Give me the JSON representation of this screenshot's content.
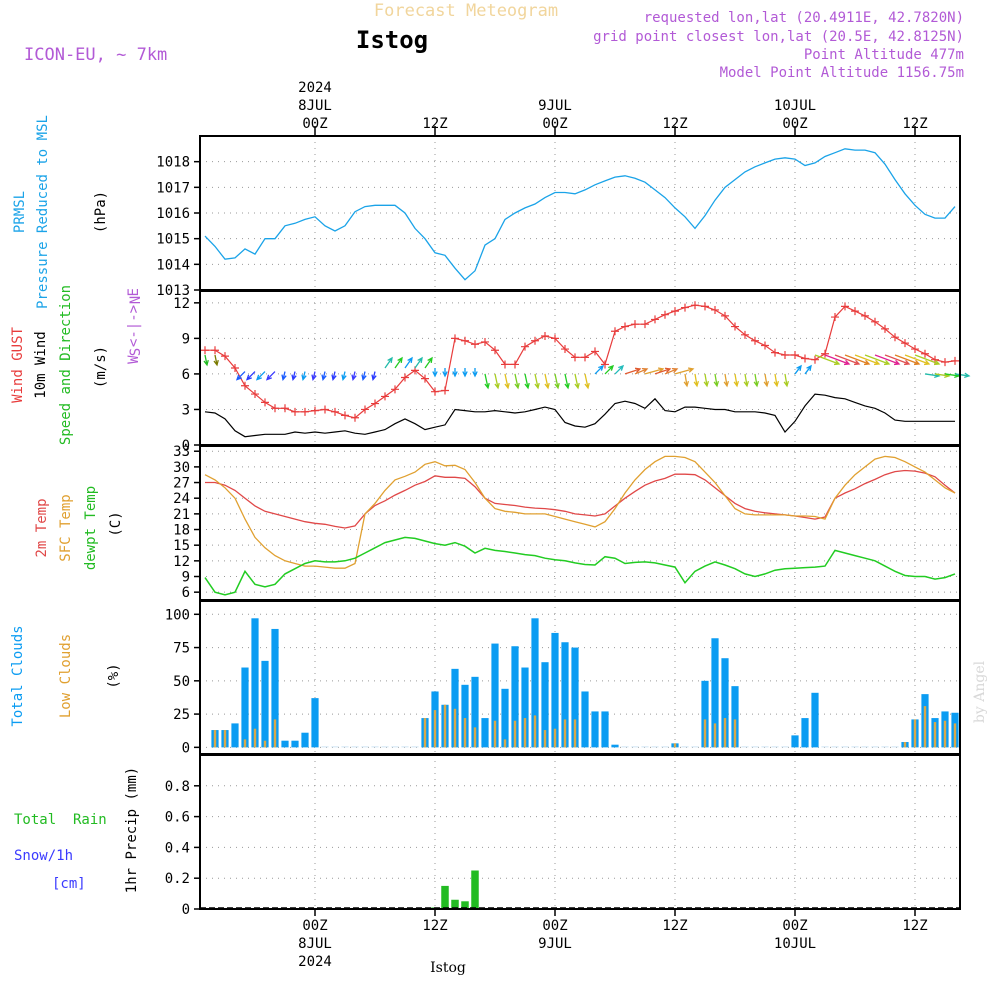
{
  "header": {
    "product_title": "Forecast Meteogram",
    "station": "Istog",
    "model": "ICON-EU, ~ 7km",
    "info_lines": [
      "requested lon,lat (20.4911E, 42.7820N)",
      "grid point closest lon,lat (20.5E, 42.8125N)",
      "Point Altitude 477m",
      "Model Point Altitude 1156.75m"
    ],
    "watermark": "by Angel",
    "footer_station": "Istog"
  },
  "colors": {
    "pressure": "#1aa3e8",
    "gust": "#e83c3c",
    "wind10m": "#000000",
    "temp2m": "#e04848",
    "sfc_temp": "#e0a030",
    "dewpt": "#22cc22",
    "total_clouds": "#0b9cf2",
    "low_clouds": "#d7a94b",
    "rain": "#22bb22",
    "snow": "#3a3aff",
    "purple": "#b25ad6"
  },
  "time_axis": {
    "top_labels": [
      {
        "lines": [
          "2024",
          "8JUL",
          "00Z"
        ],
        "h": 24
      },
      {
        "lines": [
          "12Z"
        ],
        "h": 36
      },
      {
        "lines": [
          "9JUL",
          "00Z"
        ],
        "h": 48
      },
      {
        "lines": [
          "12Z"
        ],
        "h": 60
      },
      {
        "lines": [
          "10JUL",
          "00Z"
        ],
        "h": 72
      },
      {
        "lines": [
          "12Z"
        ],
        "h": 84
      }
    ],
    "bottom_labels": [
      {
        "lines": [
          "00Z",
          "8JUL",
          "2024"
        ],
        "h": 24
      },
      {
        "lines": [
          "12Z"
        ],
        "h": 36
      },
      {
        "lines": [
          "00Z",
          "9JUL"
        ],
        "h": 48
      },
      {
        "lines": [
          "12Z"
        ],
        "h": 60
      },
      {
        "lines": [
          "00Z",
          "10JUL"
        ],
        "h": 72
      },
      {
        "lines": [
          "12Z"
        ],
        "h": 84
      }
    ]
  },
  "panels": {
    "pressure": {
      "labels": [
        "PRMSL",
        "Pressure Reduced to MSL"
      ],
      "unit": "(hPa)",
      "ticks": [
        1013,
        1014,
        1015,
        1016,
        1017,
        1018
      ],
      "ylim": [
        1013,
        1019
      ]
    },
    "wind": {
      "labels": [
        "Wind GUST",
        "10m Wind",
        "Speed and Direction"
      ],
      "unit": "(m/s)",
      "compass": [
        "N",
        "W <-|-> E",
        "S"
      ],
      "ticks": [
        0,
        3,
        6,
        9,
        12
      ],
      "ylim": [
        0,
        13
      ]
    },
    "temp": {
      "labels": [
        "2m Temp",
        "SFC Temp",
        "dewpt Temp"
      ],
      "unit": "(C)",
      "ticks": [
        6,
        9,
        12,
        15,
        18,
        21,
        24,
        27,
        30,
        33
      ],
      "ylim": [
        4.5,
        34
      ]
    },
    "clouds": {
      "labels": [
        "Total Clouds",
        "Low Clouds"
      ],
      "unit": "(%)",
      "ticks": [
        0,
        25,
        50,
        75,
        100
      ],
      "ylim": [
        -5,
        110
      ]
    },
    "precip": {
      "labels": [
        "Total  Rain",
        "Snow/1h",
        "[cm]"
      ],
      "ylabel": "1hr Precip (mm)",
      "ticks": [
        "0",
        "0.2",
        "0.4",
        "0.6",
        "0.8"
      ],
      "ylim": [
        0,
        1.0
      ]
    }
  },
  "chart_data": [
    {
      "type": "line",
      "title": "PRMSL",
      "ylabel": "(hPa)",
      "x_hours": [
        13,
        14,
        15,
        16,
        17,
        18,
        19,
        20,
        21,
        22,
        23,
        24,
        25,
        26,
        27,
        28,
        29,
        30,
        31,
        32,
        33,
        34,
        35,
        36,
        37,
        38,
        39,
        40,
        41,
        42,
        43,
        44,
        45,
        46,
        47,
        48,
        49,
        50,
        51,
        52,
        53,
        54,
        55,
        56,
        57,
        58,
        59,
        60,
        61,
        62,
        63,
        64,
        65,
        66,
        67,
        68,
        69,
        70,
        71,
        72,
        73,
        74,
        75,
        76,
        77,
        78,
        79,
        80,
        81,
        82,
        83,
        84,
        85,
        86,
        87,
        88
      ],
      "series": [
        {
          "name": "PRMSL",
          "values": [
            1015.1,
            1014.7,
            1014.2,
            1014.25,
            1014.6,
            1014.4,
            1015.0,
            1015.0,
            1015.5,
            1015.6,
            1015.75,
            1015.85,
            1015.5,
            1015.3,
            1015.5,
            1016.05,
            1016.25,
            1016.3,
            1016.3,
            1016.3,
            1016.0,
            1015.4,
            1015.0,
            1014.45,
            1014.35,
            1013.85,
            1013.4,
            1013.75,
            1014.75,
            1015.0,
            1015.75,
            1016.0,
            1016.2,
            1016.35,
            1016.6,
            1016.8,
            1016.8,
            1016.75,
            1016.9,
            1017.1,
            1017.25,
            1017.4,
            1017.45,
            1017.35,
            1017.2,
            1016.9,
            1016.6,
            1016.2,
            1015.85,
            1015.4,
            1015.9,
            1016.5,
            1017.0,
            1017.3,
            1017.6,
            1017.8,
            1017.95,
            1018.1,
            1018.15,
            1018.1,
            1017.85,
            1017.95,
            1018.2,
            1018.35,
            1018.5,
            1018.45,
            1018.45,
            1018.35,
            1017.9,
            1017.3,
            1016.75,
            1016.3,
            1015.95,
            1015.8,
            1015.8,
            1016.25
          ]
        }
      ]
    },
    {
      "type": "line",
      "title": "Wind GUST / 10m Wind",
      "ylabel": "(m/s)",
      "x_hours": [
        13,
        14,
        15,
        16,
        17,
        18,
        19,
        20,
        21,
        22,
        23,
        24,
        25,
        26,
        27,
        28,
        29,
        30,
        31,
        32,
        33,
        34,
        35,
        36,
        37,
        38,
        39,
        40,
        41,
        42,
        43,
        44,
        45,
        46,
        47,
        48,
        49,
        50,
        51,
        52,
        53,
        54,
        55,
        56,
        57,
        58,
        59,
        60,
        61,
        62,
        63,
        64,
        65,
        66,
        67,
        68,
        69,
        70,
        71,
        72,
        73,
        74,
        75,
        76,
        77,
        78,
        79,
        80,
        81,
        82,
        83,
        84,
        85,
        86,
        87,
        88
      ],
      "series": [
        {
          "name": "Wind GUST",
          "values": [
            8.0,
            8.0,
            7.5,
            6.5,
            5.0,
            4.3,
            3.6,
            3.1,
            3.1,
            2.8,
            2.8,
            2.9,
            3.0,
            2.8,
            2.5,
            2.3,
            3.0,
            3.5,
            4.1,
            4.7,
            5.7,
            6.3,
            5.6,
            4.5,
            4.6,
            9.0,
            8.8,
            8.5,
            8.7,
            8.0,
            6.8,
            6.8,
            8.3,
            8.8,
            9.2,
            9.0,
            8.1,
            7.4,
            7.4,
            7.9,
            6.8,
            9.6,
            10.0,
            10.2,
            10.2,
            10.6,
            11.0,
            11.3,
            11.6,
            11.8,
            11.7,
            11.4,
            10.9,
            10.0,
            9.3,
            8.8,
            8.4,
            7.8,
            7.6,
            7.6,
            7.3,
            7.2,
            7.7,
            10.8,
            11.7,
            11.3,
            10.9,
            10.4,
            9.8,
            9.1,
            8.6,
            8.1,
            7.7,
            7.2,
            7.0,
            7.1
          ]
        },
        {
          "name": "10m Wind",
          "values": [
            2.8,
            2.7,
            2.2,
            1.2,
            0.7,
            0.8,
            0.9,
            0.9,
            0.9,
            1.1,
            1.0,
            1.1,
            1.0,
            1.1,
            1.2,
            1.0,
            0.9,
            1.1,
            1.3,
            1.8,
            2.2,
            1.8,
            1.3,
            1.5,
            1.7,
            3.0,
            2.9,
            2.8,
            2.8,
            2.9,
            2.8,
            2.7,
            2.8,
            3.0,
            3.2,
            3.0,
            1.9,
            1.6,
            1.5,
            1.8,
            2.6,
            3.5,
            3.7,
            3.5,
            3.1,
            3.9,
            2.9,
            2.8,
            3.2,
            3.2,
            3.1,
            3.0,
            3.0,
            2.8,
            2.8,
            2.8,
            2.7,
            2.5,
            1.1,
            2.0,
            3.3,
            4.3,
            4.2,
            4.0,
            3.9,
            3.6,
            3.3,
            3.1,
            2.7,
            2.1,
            2.0,
            2.0,
            2.0,
            2.0,
            2.0,
            2.0
          ]
        }
      ]
    },
    {
      "type": "line",
      "title": "Temperature",
      "ylabel": "(C)",
      "x_hours": [
        13,
        14,
        15,
        16,
        17,
        18,
        19,
        20,
        21,
        22,
        23,
        24,
        25,
        26,
        27,
        28,
        29,
        30,
        31,
        32,
        33,
        34,
        35,
        36,
        37,
        38,
        39,
        40,
        41,
        42,
        43,
        44,
        45,
        46,
        47,
        48,
        49,
        50,
        51,
        52,
        53,
        54,
        55,
        56,
        57,
        58,
        59,
        60,
        61,
        62,
        63,
        64,
        65,
        66,
        67,
        68,
        69,
        70,
        71,
        72,
        73,
        74,
        75,
        76,
        77,
        78,
        79,
        80,
        81,
        82,
        83,
        84,
        85,
        86,
        87,
        88
      ],
      "series": [
        {
          "name": "2m Temp",
          "values": [
            27.0,
            27.0,
            26.5,
            25.5,
            24.0,
            22.5,
            21.5,
            21.0,
            20.5,
            20.0,
            19.5,
            19.2,
            19.0,
            18.6,
            18.3,
            18.7,
            21.0,
            22.6,
            23.5,
            24.6,
            25.5,
            26.5,
            27.2,
            28.3,
            28.0,
            28.0,
            27.8,
            26.2,
            24.0,
            23.0,
            22.8,
            22.6,
            22.3,
            22.1,
            22.0,
            21.8,
            21.5,
            21.0,
            20.8,
            20.6,
            21.0,
            22.5,
            24.0,
            25.3,
            26.5,
            27.3,
            27.8,
            28.6,
            28.6,
            28.5,
            27.5,
            26.0,
            24.5,
            23.0,
            22.0,
            21.5,
            21.2,
            21.0,
            20.8,
            20.6,
            20.3,
            20.0,
            20.4,
            24.0,
            25.0,
            25.8,
            26.8,
            27.6,
            28.5,
            29.1,
            29.3,
            29.2,
            28.8,
            28.1,
            26.5,
            25.0
          ]
        },
        {
          "name": "SFC Temp",
          "values": [
            28.5,
            27.5,
            26.0,
            24.0,
            20.0,
            16.5,
            14.5,
            13.0,
            12.0,
            11.5,
            11.0,
            11.0,
            10.8,
            10.6,
            10.6,
            11.5,
            21.0,
            23.0,
            25.5,
            27.5,
            28.2,
            29.0,
            30.5,
            31.0,
            30.2,
            30.3,
            29.5,
            27.0,
            24.0,
            22.0,
            21.5,
            21.3,
            21.0,
            21.0,
            21.0,
            20.5,
            20.0,
            19.5,
            19.0,
            18.5,
            19.5,
            22.0,
            25.0,
            27.5,
            29.5,
            31.0,
            32.0,
            32.0,
            31.8,
            31.0,
            29.0,
            27.0,
            24.5,
            22.0,
            21.0,
            20.8,
            20.8,
            20.8,
            20.8,
            20.6,
            20.6,
            20.5,
            20.0,
            24.0,
            26.5,
            28.5,
            30.0,
            31.5,
            32.0,
            31.8,
            31.0,
            30.0,
            29.0,
            27.5,
            26.0,
            25.0
          ]
        },
        {
          "name": "dewpt Temp",
          "values": [
            8.8,
            6.0,
            5.5,
            6.0,
            10.0,
            7.5,
            7.0,
            7.5,
            9.5,
            10.5,
            11.5,
            12.0,
            11.8,
            11.8,
            12.0,
            12.5,
            13.5,
            14.5,
            15.5,
            16.0,
            16.5,
            16.3,
            15.8,
            15.3,
            15.0,
            15.5,
            14.8,
            13.5,
            14.4,
            14.0,
            13.8,
            13.5,
            13.2,
            13.0,
            12.5,
            12.2,
            12.0,
            11.6,
            11.3,
            11.2,
            12.8,
            12.5,
            11.5,
            11.7,
            11.8,
            11.6,
            11.2,
            10.8,
            7.8,
            10.0,
            11.0,
            11.8,
            11.2,
            10.5,
            9.5,
            9.0,
            9.5,
            10.2,
            10.5,
            10.6,
            10.7,
            10.8,
            11.0,
            14.0,
            13.5,
            13.0,
            12.5,
            12.0,
            11.0,
            10.0,
            9.2,
            9.0,
            9.0,
            8.5,
            8.8,
            9.5
          ]
        }
      ]
    },
    {
      "type": "bar",
      "title": "Clouds",
      "ylabel": "(%)",
      "x_hours": [
        14,
        15,
        16,
        17,
        18,
        19,
        20,
        21,
        22,
        23,
        24,
        25,
        26,
        27,
        28,
        29,
        30,
        31,
        32,
        33,
        34,
        35,
        36,
        37,
        38,
        39,
        40,
        41,
        42,
        43,
        44,
        45,
        46,
        47,
        48,
        49,
        50,
        51,
        52,
        53,
        54,
        55,
        56,
        57,
        58,
        59,
        60,
        61,
        62,
        63,
        64,
        65,
        66,
        67,
        68,
        69,
        70,
        71,
        72,
        73,
        74,
        75,
        76,
        77,
        78,
        79,
        80,
        81,
        82,
        83,
        84,
        85,
        86,
        87,
        88
      ],
      "series": [
        {
          "name": "Total Clouds",
          "values": [
            13,
            13,
            18,
            60,
            97,
            65,
            89,
            5,
            5,
            11,
            37,
            0,
            0,
            0,
            0,
            0,
            0,
            0,
            0,
            0,
            0,
            22,
            42,
            32,
            59,
            47,
            53,
            22,
            78,
            44,
            76,
            60,
            97,
            64,
            86,
            79,
            75,
            42,
            27,
            27,
            2,
            0,
            0,
            0,
            0,
            0,
            3,
            0,
            0,
            50,
            82,
            67,
            46,
            0,
            0,
            0,
            0,
            0,
            9,
            22,
            41,
            0,
            0,
            0,
            0,
            0,
            0,
            0,
            0,
            4,
            21,
            40,
            22,
            27,
            26
          ]
        },
        {
          "name": "Low Clouds",
          "values": [
            13,
            13,
            0,
            6,
            14,
            5,
            21,
            0,
            0,
            0,
            0,
            0,
            0,
            0,
            0,
            0,
            0,
            0,
            0,
            0,
            0,
            22,
            28,
            32,
            29,
            22,
            15,
            0,
            20,
            6,
            20,
            22,
            24,
            13,
            14,
            21,
            21,
            0,
            0,
            0,
            0,
            0,
            0,
            0,
            0,
            0,
            3,
            0,
            0,
            21,
            18,
            22,
            21,
            0,
            0,
            0,
            0,
            0,
            0,
            0,
            0,
            0,
            0,
            0,
            0,
            0,
            0,
            0,
            0,
            4,
            21,
            31,
            19,
            20,
            18
          ]
        }
      ]
    },
    {
      "type": "bar",
      "title": "1hr Precip",
      "ylabel": "1hr Precip (mm)",
      "x_hours": [
        36,
        37,
        38,
        39,
        40
      ],
      "series": [
        {
          "name": "Total Rain",
          "values": [
            0.01,
            0.15,
            0.06,
            0.05,
            0.25
          ]
        }
      ]
    }
  ]
}
